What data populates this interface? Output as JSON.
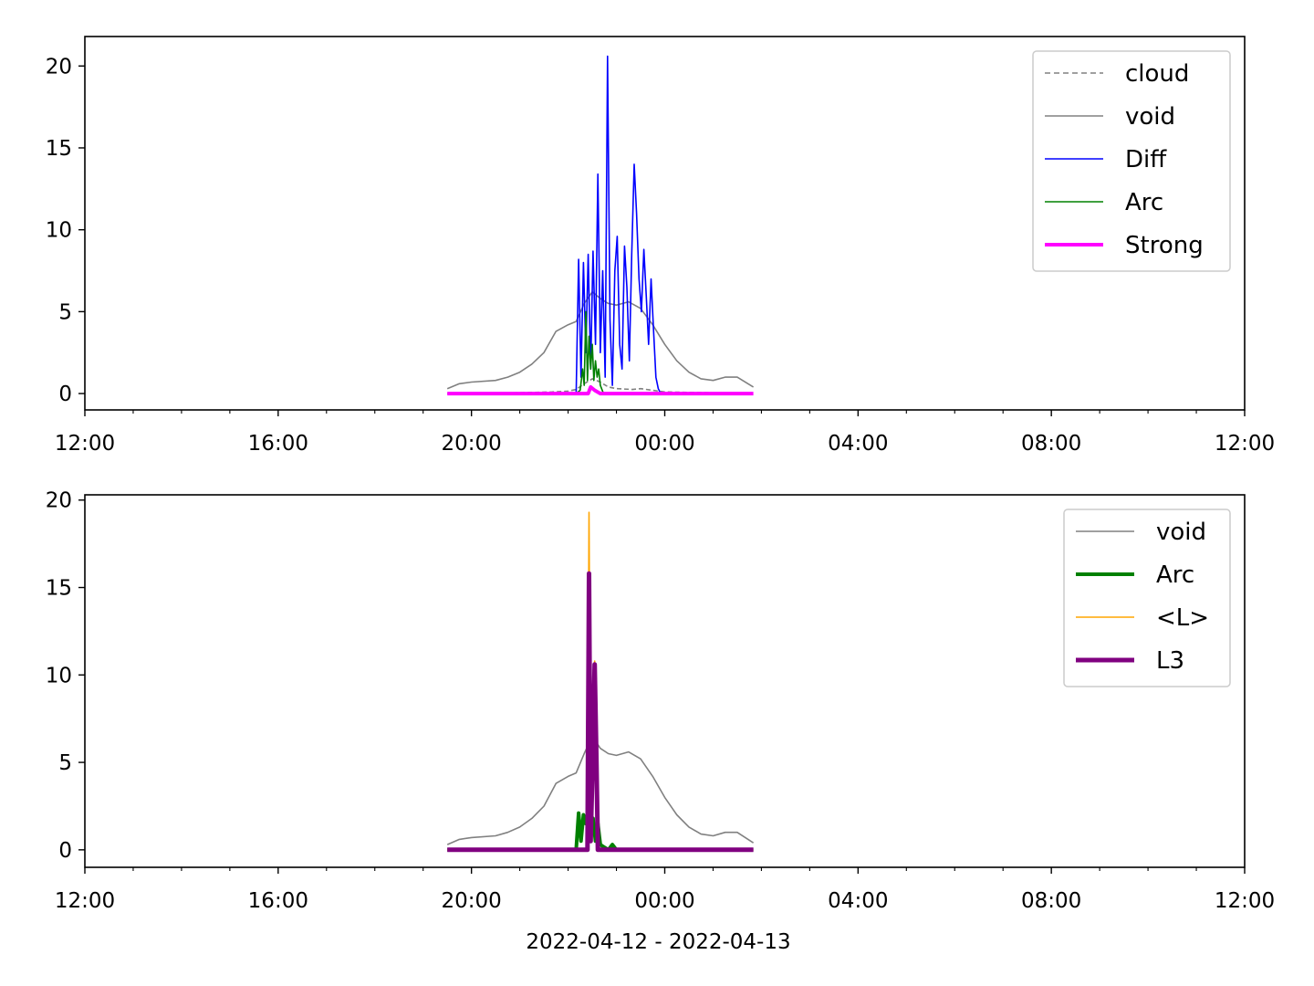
{
  "chart_data": [
    {
      "type": "line",
      "xlabel": "",
      "ylabel": "",
      "xlim": [
        "2022-04-12 12:00",
        "2022-04-13 12:00"
      ],
      "ylim": [
        -1.0,
        21.8
      ],
      "x_ticks": [
        "12:00",
        "16:00",
        "20:00",
        "00:00",
        "04:00",
        "08:00",
        "12:00"
      ],
      "y_ticks": [
        0,
        5,
        10,
        15,
        20
      ],
      "grid": false,
      "legend_position": "top-right",
      "series": [
        {
          "name": "cloud",
          "color": "#808080",
          "style": "dashed",
          "x": [
            "2022-04-12 19:30",
            "2022-04-12 21:00",
            "2022-04-12 21:40",
            "2022-04-12 22:00",
            "2022-04-12 22:10",
            "2022-04-12 22:20",
            "2022-04-12 22:30",
            "2022-04-12 22:40",
            "2022-04-12 22:50",
            "2022-04-12 23:00",
            "2022-04-12 23:20",
            "2022-04-12 23:30",
            "2022-04-12 23:45",
            "2022-04-13 00:00",
            "2022-04-13 01:50"
          ],
          "values": [
            0.0,
            0.05,
            0.1,
            0.15,
            0.25,
            0.6,
            0.9,
            0.7,
            0.4,
            0.3,
            0.25,
            0.3,
            0.2,
            0.1,
            0.0
          ]
        },
        {
          "name": "void",
          "color": "#808080",
          "style": "solid",
          "x": [
            "2022-04-12 19:30",
            "2022-04-12 19:45",
            "2022-04-12 20:00",
            "2022-04-12 20:30",
            "2022-04-12 20:45",
            "2022-04-12 21:00",
            "2022-04-12 21:15",
            "2022-04-12 21:30",
            "2022-04-12 21:45",
            "2022-04-12 22:00",
            "2022-04-12 22:10",
            "2022-04-12 22:20",
            "2022-04-12 22:30",
            "2022-04-12 22:40",
            "2022-04-12 22:50",
            "2022-04-12 23:00",
            "2022-04-12 23:15",
            "2022-04-12 23:30",
            "2022-04-12 23:45",
            "2022-04-13 00:00",
            "2022-04-13 00:15",
            "2022-04-13 00:30",
            "2022-04-13 00:45",
            "2022-04-13 01:00",
            "2022-04-13 01:15",
            "2022-04-13 01:30",
            "2022-04-13 01:50"
          ],
          "values": [
            0.3,
            0.6,
            0.7,
            0.8,
            1.0,
            1.3,
            1.8,
            2.5,
            3.8,
            4.2,
            4.4,
            5.5,
            6.2,
            5.8,
            5.5,
            5.4,
            5.6,
            5.2,
            4.2,
            3.0,
            2.0,
            1.3,
            0.9,
            0.8,
            1.0,
            1.0,
            0.4
          ]
        },
        {
          "name": "Diff",
          "color": "#0000ff",
          "style": "solid",
          "x": [
            "2022-04-12 22:10",
            "2022-04-12 22:13",
            "2022-04-12 22:16",
            "2022-04-12 22:19",
            "2022-04-12 22:22",
            "2022-04-12 22:25",
            "2022-04-12 22:28",
            "2022-04-12 22:31",
            "2022-04-12 22:34",
            "2022-04-12 22:37",
            "2022-04-12 22:40",
            "2022-04-12 22:43",
            "2022-04-12 22:46",
            "2022-04-12 22:49",
            "2022-04-12 22:52",
            "2022-04-12 22:55",
            "2022-04-12 22:58",
            "2022-04-12 23:01",
            "2022-04-12 23:04",
            "2022-04-12 23:07",
            "2022-04-12 23:10",
            "2022-04-12 23:13",
            "2022-04-12 23:16",
            "2022-04-12 23:19",
            "2022-04-12 23:22",
            "2022-04-12 23:25",
            "2022-04-12 23:28",
            "2022-04-12 23:31",
            "2022-04-12 23:34",
            "2022-04-12 23:37",
            "2022-04-12 23:40",
            "2022-04-12 23:43",
            "2022-04-12 23:46",
            "2022-04-12 23:49",
            "2022-04-12 23:52",
            "2022-04-12 23:55"
          ],
          "values": [
            0.0,
            8.2,
            1.0,
            8.0,
            2.5,
            8.5,
            1.5,
            8.7,
            3.0,
            13.4,
            2.5,
            7.5,
            1.0,
            20.6,
            4.5,
            0.5,
            7.5,
            9.6,
            3.0,
            1.5,
            9.0,
            6.5,
            2.0,
            8.5,
            14.0,
            11.0,
            7.0,
            5.0,
            8.8,
            6.0,
            3.0,
            7.0,
            4.0,
            1.0,
            0.3,
            0.0
          ]
        },
        {
          "name": "Arc",
          "color": "#008000",
          "style": "solid",
          "x": [
            "2022-04-12 22:10",
            "2022-04-12 22:15",
            "2022-04-12 22:18",
            "2022-04-12 22:20",
            "2022-04-12 22:22",
            "2022-04-12 22:24",
            "2022-04-12 22:26",
            "2022-04-12 22:28",
            "2022-04-12 22:30",
            "2022-04-12 22:32",
            "2022-04-12 22:34",
            "2022-04-12 22:36",
            "2022-04-12 22:38",
            "2022-04-12 22:40",
            "2022-04-12 22:44"
          ],
          "values": [
            0.0,
            0.2,
            1.5,
            0.5,
            5.0,
            0.8,
            3.5,
            1.5,
            3.0,
            0.8,
            2.0,
            1.0,
            1.5,
            0.5,
            0.0
          ]
        },
        {
          "name": "Strong",
          "color": "#ff00ff",
          "style": "solid",
          "x": [
            "2022-04-12 19:30",
            "2022-04-12 22:25",
            "2022-04-12 22:28",
            "2022-04-12 22:33",
            "2022-04-12 22:40",
            "2022-04-13 01:50"
          ],
          "values": [
            0.0,
            0.0,
            0.4,
            0.2,
            0.0,
            0.0
          ]
        }
      ]
    },
    {
      "type": "line",
      "xlabel": "2022-04-12 - 2022-04-13",
      "ylabel": "",
      "xlim": [
        "2022-04-12 12:00",
        "2022-04-13 12:00"
      ],
      "ylim": [
        -1.0,
        20.3
      ],
      "x_ticks": [
        "12:00",
        "16:00",
        "20:00",
        "00:00",
        "04:00",
        "08:00",
        "12:00"
      ],
      "y_ticks": [
        0,
        5,
        10,
        15,
        20
      ],
      "grid": false,
      "legend_position": "top-right",
      "series": [
        {
          "name": "void",
          "color": "#808080",
          "style": "solid",
          "x": [
            "2022-04-12 19:30",
            "2022-04-12 19:45",
            "2022-04-12 20:00",
            "2022-04-12 20:30",
            "2022-04-12 20:45",
            "2022-04-12 21:00",
            "2022-04-12 21:15",
            "2022-04-12 21:30",
            "2022-04-12 21:45",
            "2022-04-12 22:00",
            "2022-04-12 22:10",
            "2022-04-12 22:20",
            "2022-04-12 22:30",
            "2022-04-12 22:40",
            "2022-04-12 22:50",
            "2022-04-12 23:00",
            "2022-04-12 23:15",
            "2022-04-12 23:30",
            "2022-04-12 23:45",
            "2022-04-13 00:00",
            "2022-04-13 00:15",
            "2022-04-13 00:30",
            "2022-04-13 00:45",
            "2022-04-13 01:00",
            "2022-04-13 01:15",
            "2022-04-13 01:30",
            "2022-04-13 01:50"
          ],
          "values": [
            0.3,
            0.6,
            0.7,
            0.8,
            1.0,
            1.3,
            1.8,
            2.5,
            3.8,
            4.2,
            4.4,
            5.5,
            6.5,
            5.8,
            5.5,
            5.4,
            5.6,
            5.2,
            4.2,
            3.0,
            2.0,
            1.3,
            0.9,
            0.8,
            1.0,
            1.0,
            0.4
          ]
        },
        {
          "name": "Arc",
          "color": "#008000",
          "style": "solid",
          "x": [
            "2022-04-12 19:30",
            "2022-04-12 22:10",
            "2022-04-12 22:13",
            "2022-04-12 22:16",
            "2022-04-12 22:19",
            "2022-04-12 22:22",
            "2022-04-12 22:25",
            "2022-04-12 22:28",
            "2022-04-12 22:31",
            "2022-04-12 22:34",
            "2022-04-12 22:37",
            "2022-04-12 22:40",
            "2022-04-12 22:43",
            "2022-04-12 22:50",
            "2022-04-12 22:55",
            "2022-04-12 23:00",
            "2022-04-13 01:50"
          ],
          "values": [
            0.0,
            0.0,
            2.1,
            0.5,
            2.0,
            1.5,
            2.0,
            1.0,
            1.8,
            0.5,
            1.5,
            0.3,
            0.2,
            0.0,
            0.3,
            0.0,
            0.0
          ]
        },
        {
          "name": "<L>",
          "color": "#ffa500",
          "style": "solid",
          "x": [
            "2022-04-12 19:30",
            "2022-04-12 22:24",
            "2022-04-12 22:26",
            "2022-04-12 22:28",
            "2022-04-12 22:31",
            "2022-04-12 22:33",
            "2022-04-12 22:35",
            "2022-04-12 22:37",
            "2022-04-13 01:50"
          ],
          "values": [
            0.0,
            0.0,
            19.3,
            0.5,
            7.0,
            10.8,
            6.5,
            0.0,
            0.0
          ]
        },
        {
          "name": "L3",
          "color": "#800080",
          "style": "solid",
          "x": [
            "2022-04-12 19:30",
            "2022-04-12 22:24",
            "2022-04-12 22:26",
            "2022-04-12 22:28",
            "2022-04-12 22:31",
            "2022-04-12 22:33",
            "2022-04-12 22:35",
            "2022-04-12 22:37",
            "2022-04-13 01:50"
          ],
          "values": [
            0.0,
            0.0,
            15.8,
            0.5,
            6.0,
            10.6,
            5.5,
            0.0,
            0.0
          ]
        }
      ]
    }
  ]
}
